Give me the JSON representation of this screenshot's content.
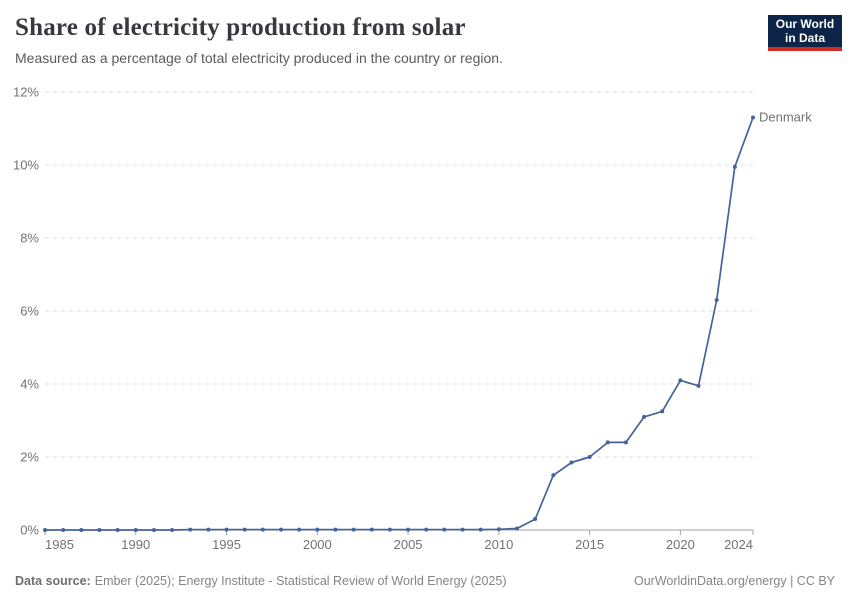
{
  "header": {
    "title": "Share of electricity production from solar",
    "subtitle": "Measured as a percentage of total electricity produced in the country or region.",
    "logo": {
      "line1": "Our World",
      "line2": "in Data"
    }
  },
  "colors": {
    "series_line": "#44639c",
    "series_label": "#44639c",
    "gridline": "#dcdcdc",
    "axis": "#a3a3a3",
    "tick_label": "#737373",
    "logo_background": "#0c2548",
    "logo_accent": "#cf2d24"
  },
  "chart_data": {
    "type": "line",
    "title": "Share of electricity production from solar",
    "xlabel": "",
    "ylabel": "",
    "xlim": [
      1985,
      2024
    ],
    "ylim": [
      0,
      12
    ],
    "grid": "horizontal-dashed",
    "legend_position": "end-of-line-label",
    "x_tick_labels": [
      "1985",
      "1990",
      "1995",
      "2000",
      "2005",
      "2010",
      "2015",
      "2020",
      "2024"
    ],
    "x_tick_years": [
      1985,
      1990,
      1995,
      2000,
      2005,
      2010,
      2015,
      2020,
      2024
    ],
    "y_tick_labels": [
      "0%",
      "2%",
      "4%",
      "6%",
      "8%",
      "10%",
      "12%"
    ],
    "y_tick_values": [
      0,
      2,
      4,
      6,
      8,
      10,
      12
    ],
    "x": [
      1985,
      1986,
      1987,
      1988,
      1989,
      1990,
      1991,
      1992,
      1993,
      1994,
      1995,
      1996,
      1997,
      1998,
      1999,
      2000,
      2001,
      2002,
      2003,
      2004,
      2005,
      2006,
      2007,
      2008,
      2009,
      2010,
      2011,
      2012,
      2013,
      2014,
      2015,
      2016,
      2017,
      2018,
      2019,
      2020,
      2021,
      2022,
      2023,
      2024
    ],
    "series": [
      {
        "name": "Denmark",
        "values": [
          0,
          0,
          0,
          0,
          0,
          0,
          0,
          0,
          0.01,
          0.01,
          0.01,
          0.01,
          0.01,
          0.01,
          0.01,
          0.01,
          0.01,
          0.01,
          0.01,
          0.01,
          0.01,
          0.01,
          0.01,
          0.01,
          0.01,
          0.02,
          0.04,
          0.3,
          1.5,
          1.85,
          2.0,
          2.4,
          2.4,
          3.1,
          3.25,
          4.1,
          3.95,
          6.3,
          9.95,
          11.3
        ]
      }
    ]
  },
  "footer": {
    "source_label": "Data source:",
    "source_text": "Ember (2025); Energy Institute - Statistical Review of World Energy (2025)",
    "rights": "OurWorldinData.org/energy | CC BY"
  }
}
